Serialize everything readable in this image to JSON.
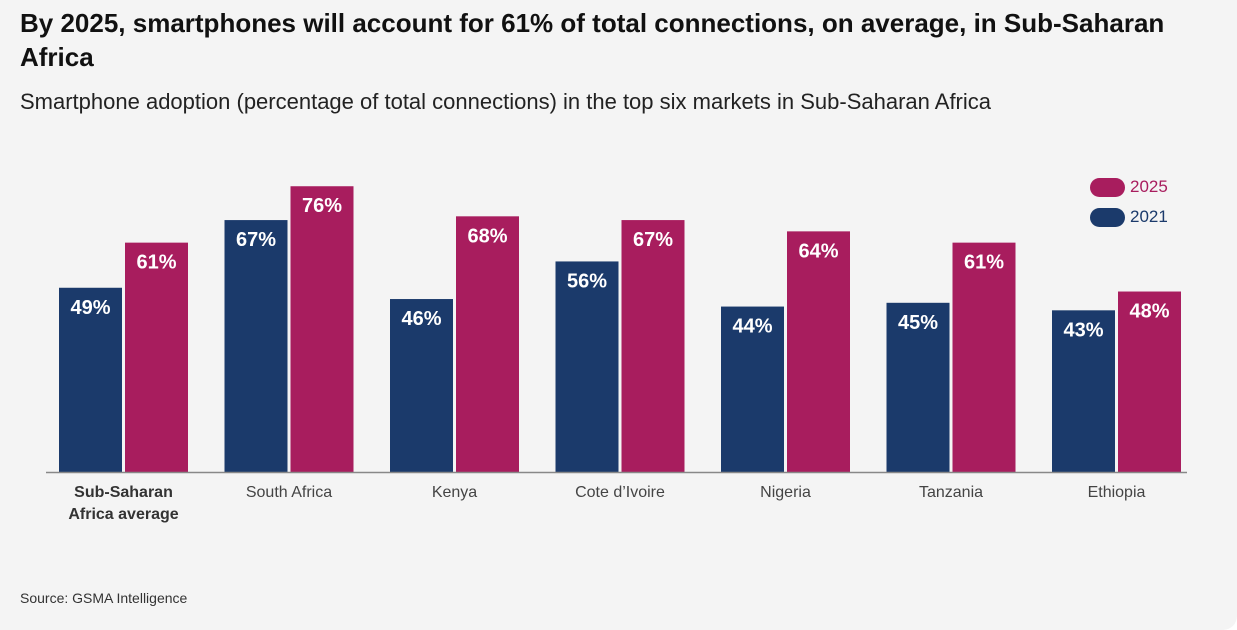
{
  "title": "By 2025, smartphones will account for 61% of total connections, on average, in Sub-Saharan Africa",
  "subtitle": "Smartphone adoption (percentage of total connections) in the top six markets in Sub-Saharan Africa",
  "source": "Source: GSMA Intelligence",
  "colors": {
    "series_2021": "#1b3a6b",
    "series_2025": "#a81d5e",
    "baseline": "#888888",
    "bar_label": "#ffffff",
    "category_label": "#444444"
  },
  "chart_data": {
    "type": "bar",
    "categories": [
      [
        "Sub-Saharan",
        "Africa average"
      ],
      [
        "South Africa"
      ],
      [
        "Kenya"
      ],
      [
        "Cote d’Ivoire"
      ],
      [
        "Nigeria"
      ],
      [
        "Tanzania"
      ],
      [
        "Ethiopia"
      ]
    ],
    "bold_categories": [
      0
    ],
    "series": [
      {
        "name": "2021",
        "values": [
          49,
          67,
          46,
          56,
          44,
          45,
          43
        ],
        "labels": [
          "49%",
          "67%",
          "46%",
          "56%",
          "44%",
          "45%",
          "43%"
        ]
      },
      {
        "name": "2025",
        "values": [
          61,
          76,
          68,
          67,
          64,
          61,
          48
        ],
        "labels": [
          "61%",
          "76%",
          "68%",
          "67%",
          "64%",
          "61%",
          "48%"
        ]
      }
    ],
    "ylim": [
      0,
      100
    ],
    "unit": "%",
    "legend": {
      "placement": "top-right",
      "order": [
        "2025",
        "2021"
      ]
    },
    "grid": false
  }
}
